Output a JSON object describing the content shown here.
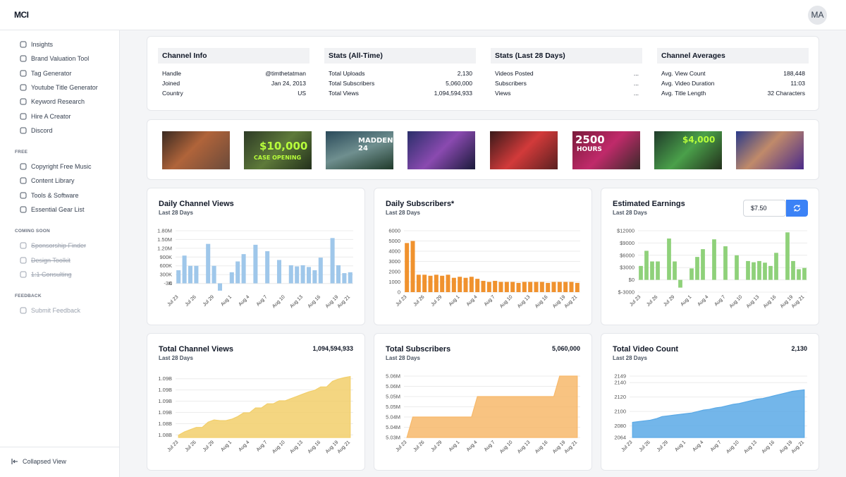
{
  "header": {
    "logo": "MCI",
    "avatar": "MA"
  },
  "sidebar": {
    "groups": [
      {
        "items": [
          "Insights",
          "Brand Valuation Tool",
          "Tag Generator",
          "Youtube Title Generator",
          "Keyword Research",
          "Hire A Creator",
          "Discord"
        ]
      },
      {
        "heading": "FREE",
        "items": [
          "Copyright Free Music",
          "Content Library",
          "Tools & Software",
          "Essential Gear List"
        ]
      },
      {
        "heading": "COMING SOON",
        "strikethrough": true,
        "items": [
          "Sponsorship Finder",
          "Design Toolkit",
          "1:1 Consulting"
        ]
      },
      {
        "heading": "FEEDBACK",
        "items": [
          "Submit Feedback"
        ]
      }
    ],
    "footer": "Collapsed View"
  },
  "info": [
    {
      "title": "Channel Info",
      "rows": [
        [
          "Handle",
          "@timthetatman"
        ],
        [
          "Joined",
          "Jan 24, 2013"
        ],
        [
          "Country",
          "US"
        ]
      ]
    },
    {
      "title": "Stats (All-Time)",
      "rows": [
        [
          "Total Uploads",
          "2,130"
        ],
        [
          "Total Subscribers",
          "5,060,000"
        ],
        [
          "Total Views",
          "1,094,594,933"
        ]
      ]
    },
    {
      "title": "Stats (Last 28 Days)",
      "rows": [
        [
          "Videos Posted",
          "..."
        ],
        [
          "Subscribers",
          "..."
        ],
        [
          "Views",
          "..."
        ]
      ]
    },
    {
      "title": "Channel Averages",
      "rows": [
        [
          "Avg. View Count",
          "188,448"
        ],
        [
          "Avg. Video Duration",
          "11:03"
        ],
        [
          "Avg. Title Length",
          "32 Characters"
        ]
      ]
    }
  ],
  "thumbnail_texts": [
    "$10,000",
    "CASE OPENING",
    "MADDEN 24",
    "2500",
    "HOURS",
    "$4,000"
  ],
  "earnings_input": "$7.50",
  "chart_data": [
    {
      "type": "bar",
      "title": "Daily Channel Views",
      "subtitle": "Last 28 Days",
      "color": "#9fc7ea",
      "categories": [
        "Jul 23",
        null,
        null,
        "Jul 26",
        null,
        null,
        "Jul 29",
        null,
        null,
        "Aug 1",
        null,
        null,
        "Aug 4",
        null,
        null,
        "Aug 7",
        null,
        null,
        "Aug 10",
        null,
        null,
        "Aug 13",
        null,
        null,
        "Aug 16",
        null,
        null,
        "Aug 19",
        null,
        "Aug 21"
      ],
      "values": [
        450000,
        950000,
        600000,
        600000,
        0,
        1350000,
        600000,
        -250000,
        0,
        380000,
        750000,
        1000000,
        0,
        1320000,
        0,
        1100000,
        0,
        800000,
        0,
        620000,
        580000,
        620000,
        560000,
        450000,
        880000,
        0,
        1550000,
        620000,
        350000,
        380000
      ],
      "ylim": [
        -300000,
        1800000
      ],
      "yticks": [
        {
          "value": -3000,
          "label": "-3K"
        },
        0,
        {
          "value": 300000,
          "label": "300K"
        },
        {
          "value": 600000,
          "label": "600K"
        },
        {
          "value": 900000,
          "label": "900K"
        },
        {
          "value": 1200000,
          "label": "1.20M"
        },
        {
          "value": 1500000,
          "label": "1.50M"
        },
        {
          "value": 1800000,
          "label": "1.80M"
        }
      ]
    },
    {
      "type": "bar",
      "title": "Daily Subscribers*",
      "subtitle": "Last 28 Days",
      "color": "#f0922e",
      "categories": [
        "Jul 23",
        null,
        null,
        "Jul 26",
        null,
        null,
        "Jul 29",
        null,
        null,
        "Aug 1",
        null,
        null,
        "Aug 4",
        null,
        null,
        "Aug 7",
        null,
        null,
        "Aug 10",
        null,
        null,
        "Aug 13",
        null,
        null,
        "Aug 16",
        null,
        null,
        "Aug 19",
        null,
        "Aug 21"
      ],
      "values": [
        4800,
        5000,
        1700,
        1700,
        1600,
        1700,
        1600,
        1700,
        1400,
        1500,
        1400,
        1500,
        1300,
        1100,
        1000,
        1100,
        1000,
        1000,
        1000,
        900,
        1000,
        1000,
        1000,
        1000,
        900,
        1000,
        1000,
        1000,
        1000,
        900
      ],
      "ylim": [
        0,
        6000
      ],
      "yticks": [
        0,
        1000,
        2000,
        3000,
        4000,
        5000,
        6000
      ]
    },
    {
      "type": "bar",
      "title": "Estimated Earnings",
      "subtitle": "Last 28 Days",
      "color": "#8fd17a",
      "categories": [
        "Jul 23",
        null,
        null,
        "Jul 26",
        null,
        null,
        "Jul 29",
        null,
        null,
        "Aug 1",
        null,
        null,
        "Aug 4",
        null,
        null,
        "Aug 7",
        null,
        null,
        "Aug 10",
        null,
        null,
        "Aug 13",
        null,
        null,
        "Aug 16",
        null,
        null,
        "Aug 19",
        null,
        "Aug 21"
      ],
      "values": [
        3400,
        7100,
        4500,
        4500,
        0,
        10100,
        4500,
        -1900,
        0,
        2800,
        5600,
        7500,
        0,
        9900,
        0,
        8200,
        0,
        6000,
        0,
        4600,
        4300,
        4600,
        4200,
        3400,
        6600,
        0,
        11600,
        4600,
        2600,
        2900
      ],
      "ylim": [
        -3000,
        12000
      ],
      "yticks": [
        {
          "value": -3000,
          "label": "$-3000"
        },
        {
          "value": 0,
          "label": "$0"
        },
        {
          "value": 3000,
          "label": "$3000"
        },
        {
          "value": 6000,
          "label": "$6000"
        },
        {
          "value": 9000,
          "label": "$9000"
        },
        {
          "value": 12000,
          "label": "$12000"
        }
      ]
    },
    {
      "type": "area",
      "title": "Total Channel Views",
      "subtitle": "Last 28 Days",
      "total": "1,094,594,933",
      "color": "#f2cf6b",
      "categories": [
        "Jul 23",
        null,
        null,
        "Jul 26",
        null,
        null,
        "Jul 29",
        null,
        null,
        "Aug 1",
        null,
        null,
        "Aug 4",
        null,
        null,
        "Aug 7",
        null,
        null,
        "Aug 10",
        null,
        null,
        "Aug 13",
        null,
        null,
        "Aug 16",
        null,
        null,
        "Aug 19",
        null,
        "Aug 21"
      ],
      "values": [
        1078900000,
        1079800000,
        1080400000,
        1081000000,
        1081000000,
        1082400000,
        1083000000,
        1082800000,
        1082800000,
        1083200000,
        1083900000,
        1084900000,
        1084900000,
        1086200000,
        1086200000,
        1087300000,
        1087300000,
        1088100000,
        1088100000,
        1088700000,
        1089300000,
        1089900000,
        1090500000,
        1090900000,
        1091800000,
        1091800000,
        1093300000,
        1093900000,
        1094300000,
        1094594933
      ],
      "ylim": [
        1078300000,
        1094700000
      ],
      "yticks": [
        {
          "value": 1079000000,
          "label": "1.08B"
        },
        {
          "value": 1082000000,
          "label": "1.08B"
        },
        {
          "value": 1085000000,
          "label": "1.09B"
        },
        {
          "value": 1088000000,
          "label": "1.09B"
        },
        {
          "value": 1091000000,
          "label": "1.09B"
        },
        {
          "value": 1094000000,
          "label": "1.09B"
        }
      ]
    },
    {
      "type": "area",
      "title": "Total Subscribers",
      "subtitle": "Last 28 Days",
      "total": "5,060,000",
      "color": "#f7b96b",
      "categories": [
        "Jul 23",
        null,
        null,
        "Jul 26",
        null,
        null,
        "Jul 29",
        null,
        null,
        "Aug 1",
        null,
        null,
        "Aug 4",
        null,
        null,
        "Aug 7",
        null,
        null,
        "Aug 10",
        null,
        null,
        "Aug 13",
        null,
        null,
        "Aug 16",
        null,
        null,
        "Aug 19",
        null,
        "Aug 21"
      ],
      "values": [
        5030000,
        5040000,
        5040000,
        5040000,
        5040000,
        5040000,
        5040000,
        5040000,
        5040000,
        5040000,
        5040000,
        5040000,
        5050000,
        5050000,
        5050000,
        5050000,
        5050000,
        5050000,
        5050000,
        5050000,
        5050000,
        5050000,
        5050000,
        5050000,
        5050000,
        5050000,
        5060000,
        5060000,
        5060000,
        5060000
      ],
      "ylim": [
        5030000,
        5060000
      ],
      "yticks": [
        {
          "value": 5030000,
          "label": "5.03M"
        },
        {
          "value": 5035000,
          "label": "5.04M"
        },
        {
          "value": 5040000,
          "label": "5.04M"
        },
        {
          "value": 5045000,
          "label": "5.05M"
        },
        {
          "value": 5050000,
          "label": "5.05M"
        },
        {
          "value": 5055000,
          "label": "5.06M"
        },
        {
          "value": 5060000,
          "label": "5.06M"
        }
      ]
    },
    {
      "type": "area",
      "title": "Total Video Count",
      "subtitle": "Last 28 Days",
      "total": "2,130",
      "color": "#5aa9e6",
      "categories": [
        "Jul 23",
        null,
        null,
        "Jul 26",
        null,
        null,
        "Jul 29",
        null,
        null,
        "Aug 1",
        null,
        null,
        "Aug 4",
        null,
        null,
        "Aug 7",
        null,
        null,
        "Aug 10",
        null,
        null,
        "Aug 13",
        null,
        null,
        "Aug 16",
        null,
        null,
        "Aug 19",
        null,
        "Aug 21"
      ],
      "values": [
        2085,
        2086,
        2087,
        2088,
        2090,
        2093,
        2094,
        2095,
        2096,
        2097,
        2098,
        2100,
        2102,
        2103,
        2105,
        2106,
        2108,
        2110,
        2111,
        2113,
        2115,
        2117,
        2118,
        2120,
        2122,
        2124,
        2126,
        2128,
        2129,
        2130
      ],
      "ylim": [
        2064,
        2149
      ],
      "yticks": [
        2064,
        2080,
        2100,
        2120,
        2140,
        2149
      ]
    }
  ]
}
